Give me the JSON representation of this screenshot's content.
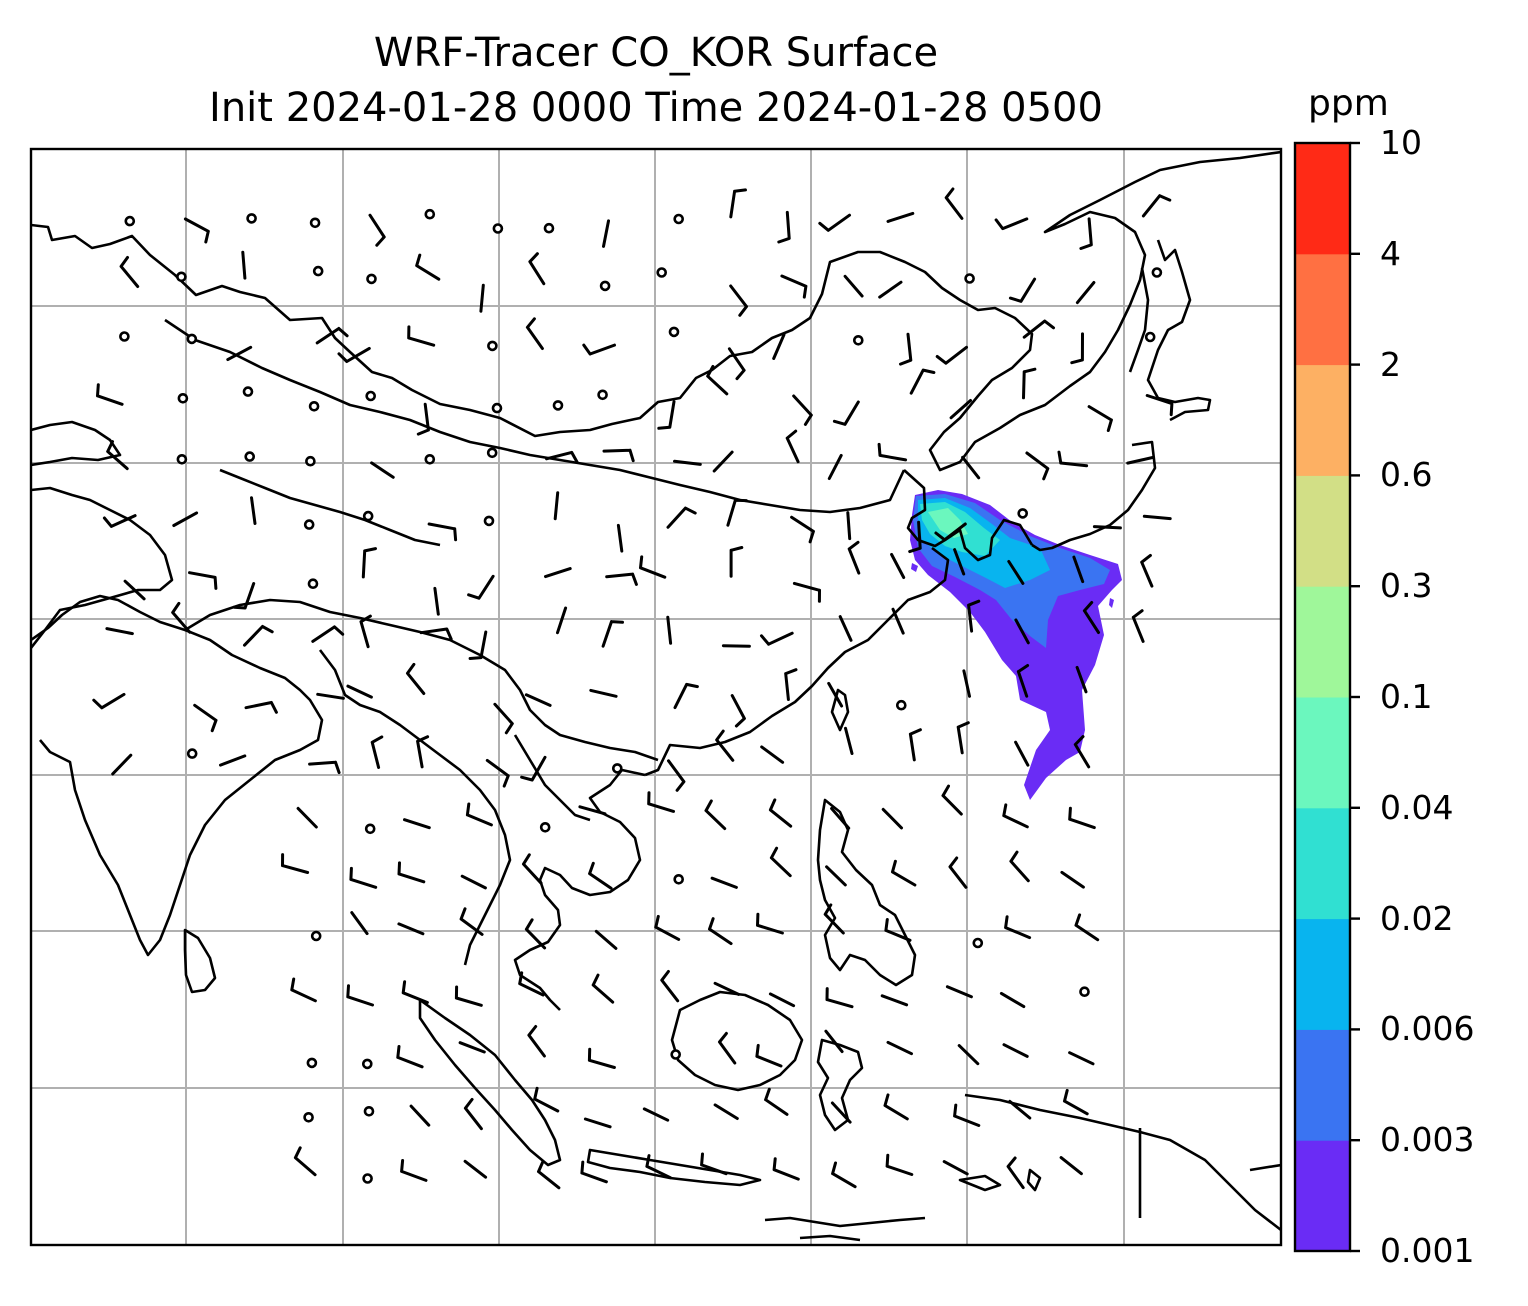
{
  "title": {
    "line1": "WRF-Tracer CO_KOR Surface",
    "line2": "Init 2024-01-28 0000 Time 2024-01-28 0500"
  },
  "colorbar": {
    "unit": "ppm",
    "levels": [
      "0.001",
      "0.003",
      "0.006",
      "0.02",
      "0.04",
      "0.1",
      "0.3",
      "0.6",
      "2",
      "4",
      "10"
    ],
    "colors": [
      "#6a2cf5",
      "#3a74f2",
      "#08b4ef",
      "#30e0d2",
      "#6bf7be",
      "#9ff79a",
      "#d2df86",
      "#fdb063",
      "#ff7042",
      "#ff2a16"
    ]
  },
  "map": {
    "gridlines": true,
    "land_outline_color": "#000000",
    "grid_color": "#b0b0b0",
    "features": [
      "coastlines",
      "wind-barbs",
      "tracer-plume"
    ]
  }
}
